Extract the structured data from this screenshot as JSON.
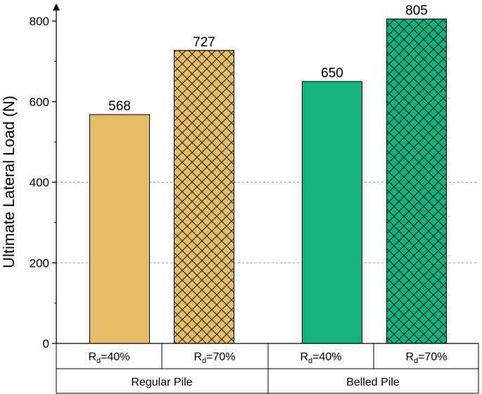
{
  "chart_data": {
    "type": "bar",
    "xlabel": "",
    "ylabel": "Ultimate Lateral Load (N)",
    "ylim": [
      0,
      800
    ],
    "yticks": [
      0,
      200,
      400,
      600,
      800
    ],
    "grid": "horizontal dashed at 200 and 400",
    "groups": [
      {
        "name": "Regular Pile",
        "color": "#E6BD67",
        "bars": [
          {
            "label_main": "R",
            "label_sub": "d",
            "label_rest": "=40%",
            "value": 568,
            "pattern": "solid"
          },
          {
            "label_main": "R",
            "label_sub": "d",
            "label_rest": "=70%",
            "value": 727,
            "pattern": "crosshatch"
          }
        ]
      },
      {
        "name": "Belled Pile",
        "color": "#13B27F",
        "bars": [
          {
            "label_main": "R",
            "label_sub": "d",
            "label_rest": "=40%",
            "value": 650,
            "pattern": "solid"
          },
          {
            "label_main": "R",
            "label_sub": "d",
            "label_rest": "=70%",
            "value": 805,
            "pattern": "crosshatch"
          }
        ]
      }
    ]
  }
}
